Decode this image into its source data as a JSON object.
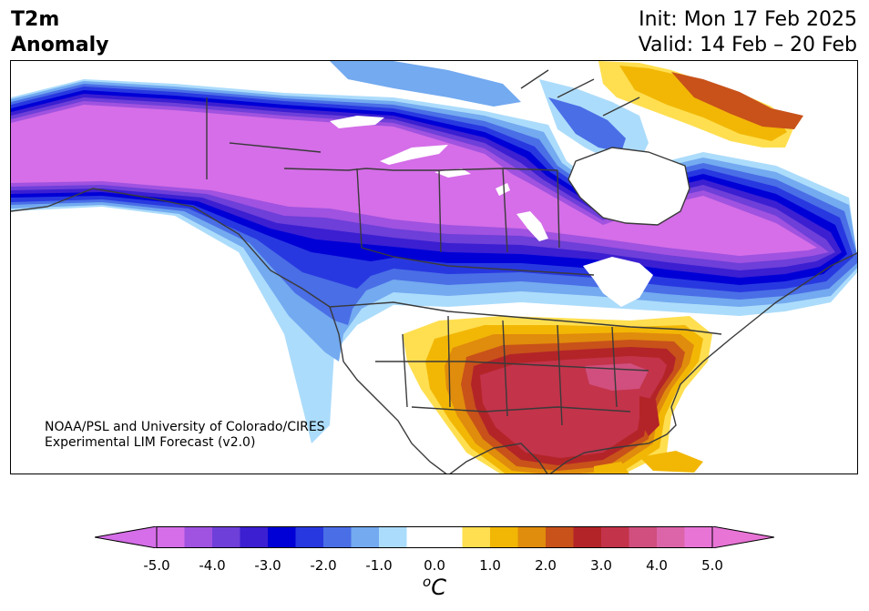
{
  "title": {
    "variable": "T2m",
    "kind": "Anomaly",
    "init": "Init: Mon 17 Feb 2025",
    "valid": "Valid: 14 Feb – 20 Feb"
  },
  "credit": {
    "line1": "NOAA/PSL and University of Colorado/CIRES",
    "line2": "Experimental LIM Forecast (v2.0)"
  },
  "colorbar": {
    "units_symbol": "o",
    "units_letter": "C",
    "tick_labels": [
      "-5.0",
      "-4.0",
      "-3.0",
      "-2.0",
      "-1.0",
      "0.0",
      "1.0",
      "2.0",
      "3.0",
      "4.0",
      "5.0"
    ],
    "range": [
      -5.0,
      5.0
    ],
    "step": 0.5,
    "extend": "both",
    "colors": [
      "#d56ee8",
      "#a052e0",
      "#6e3fd9",
      "#3b1fd1",
      "#0000d6",
      "#2838e0",
      "#4a6ee6",
      "#73aaf0",
      "#acdcfb",
      "#ffffff",
      "#ffffff",
      "#ffdf50",
      "#f2b705",
      "#e08c0c",
      "#c8521a",
      "#b32428",
      "#c3334a",
      "#d04f7e",
      "#dc64a8",
      "#e874d6"
    ],
    "under_color": "#d56ee8",
    "over_color": "#e874d6"
  },
  "map": {
    "region": "North America",
    "anomalies": [
      {
        "area": "Canada and northern US Plains",
        "value": -5.0
      },
      {
        "area": "Alaska",
        "value": -5.0
      },
      {
        "area": "Southeast US and Texas",
        "value": 3.0
      },
      {
        "area": "Florida",
        "value": 3.5
      },
      {
        "area": "Northeast Canada / Greenland",
        "value": 2.5
      },
      {
        "area": "Pacific Northwest coast",
        "value": -1.5
      }
    ]
  }
}
